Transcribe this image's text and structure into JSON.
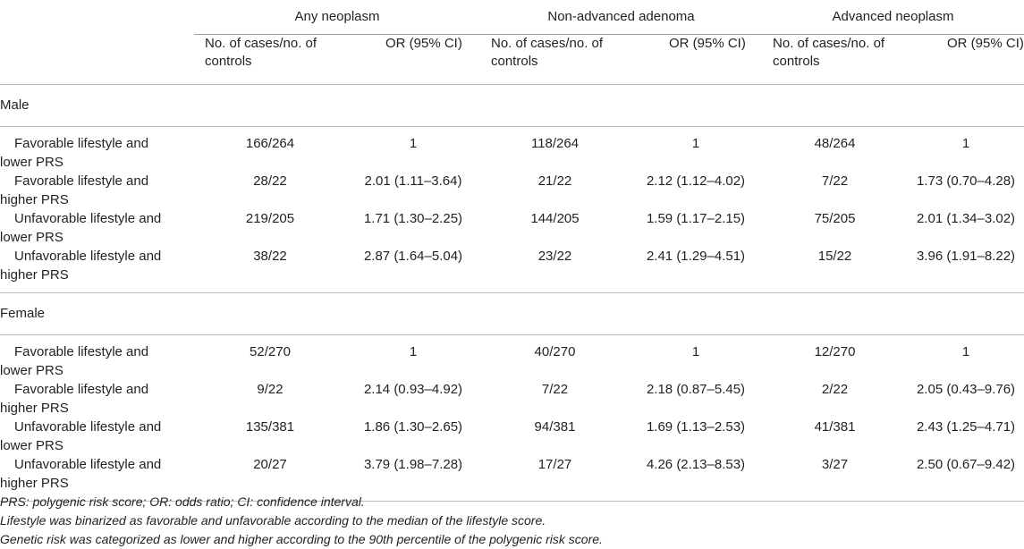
{
  "header": {
    "groups": [
      "Any neoplasm",
      "Non-advanced adenoma",
      "Advanced neoplasm"
    ],
    "sub_cases": "No. of cases/no. of controls",
    "sub_or": "OR (95% CI)"
  },
  "sections": [
    {
      "label": "Male",
      "rows": [
        {
          "line1": "Favorable lifestyle and",
          "line2": "lower PRS",
          "values": [
            "166/264",
            "1",
            "118/264",
            "1",
            "48/264",
            "1"
          ]
        },
        {
          "line1": "Favorable lifestyle and",
          "line2": "higher PRS",
          "values": [
            "28/22",
            "2.01 (1.11–3.64)",
            "21/22",
            "2.12 (1.12–4.02)",
            "7/22",
            "1.73 (0.70–4.28)"
          ]
        },
        {
          "line1": "Unfavorable lifestyle and",
          "line2": "lower PRS",
          "values": [
            "219/205",
            "1.71 (1.30–2.25)",
            "144/205",
            "1.59 (1.17–2.15)",
            "75/205",
            "2.01 (1.34–3.02)"
          ]
        },
        {
          "line1": "Unfavorable lifestyle and",
          "line2": "higher PRS",
          "values": [
            "38/22",
            "2.87 (1.64–5.04)",
            "23/22",
            "2.41 (1.29–4.51)",
            "15/22",
            "3.96 (1.91–8.22)"
          ]
        }
      ]
    },
    {
      "label": "Female",
      "rows": [
        {
          "line1": "Favorable lifestyle and",
          "line2": "lower PRS",
          "values": [
            "52/270",
            "1",
            "40/270",
            "1",
            "12/270",
            "1"
          ]
        },
        {
          "line1": "Favorable lifestyle and",
          "line2": "higher PRS",
          "values": [
            "9/22",
            "2.14 (0.93–4.92)",
            "7/22",
            "2.18 (0.87–5.45)",
            "2/22",
            "2.05 (0.43–9.76)"
          ]
        },
        {
          "line1": "Unfavorable lifestyle and",
          "line2": "lower PRS",
          "values": [
            "135/381",
            "1.86 (1.30–2.65)",
            "94/381",
            "1.69 (1.13–2.53)",
            "41/381",
            "2.43 (1.25–4.71)"
          ]
        },
        {
          "line1": "Unfavorable lifestyle and",
          "line2": "higher PRS",
          "values": [
            "20/27",
            "3.79 (1.98–7.28)",
            "17/27",
            "4.26 (2.13–8.53)",
            "3/27",
            "2.50 (0.67–9.42)"
          ]
        }
      ]
    }
  ],
  "footnotes": [
    "PRS: polygenic risk score; OR: odds ratio; CI: confidence interval.",
    "Lifestyle was binarized as favorable and unfavorable according to the median of the lifestyle score.",
    "Genetic risk was categorized as lower and higher according to the 90th percentile of the polygenic risk score."
  ]
}
